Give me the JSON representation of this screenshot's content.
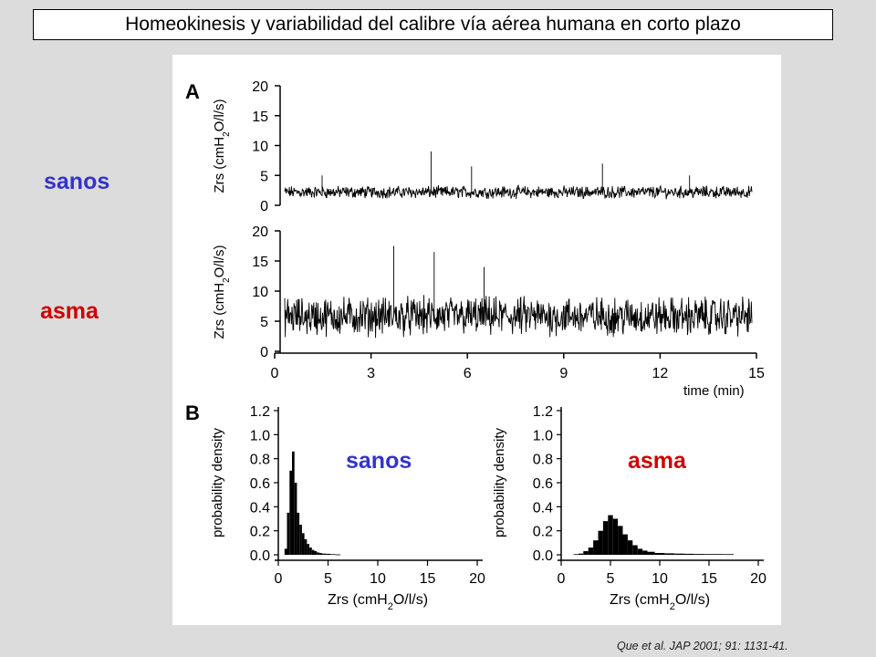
{
  "title": "Homeokinesis y variabilidad del calibre vía aérea humana en corto plazo",
  "labels": {
    "left_top": "sanos",
    "left_bottom": "asma",
    "hist_left": "sanos",
    "hist_right": "asma"
  },
  "citation": "Que et al. JAP 2001; 91: 1131-41.",
  "colors": {
    "blue": "#3333cc",
    "red": "#cc0000"
  },
  "chart_data": [
    {
      "panel": "A",
      "type": "line",
      "series": [
        {
          "name": "sanos"
        }
      ],
      "ylabel": "Zrs (cmH2O/l/s)",
      "ylim": [
        0,
        20
      ],
      "yticks": [
        "0",
        "5",
        "10",
        "15",
        "20"
      ],
      "xlim": [
        0,
        15
      ],
      "baseline_mean": 2.2,
      "spikes_min": [
        1.2,
        4.7,
        6.0,
        10.2,
        13.0
      ],
      "spike_values": [
        5,
        9,
        6.5,
        7,
        5
      ]
    },
    {
      "panel": "A",
      "type": "line",
      "series": [
        {
          "name": "asma"
        }
      ],
      "ylabel": "Zrs (cmH2O/l/s)",
      "ylim": [
        0,
        20
      ],
      "yticks": [
        "0",
        "5",
        "10",
        "15",
        "20"
      ],
      "xlim": [
        0,
        15
      ],
      "xticks": [
        "0",
        "3",
        "6",
        "9",
        "12",
        "15"
      ],
      "xlabel": "time (min)",
      "baseline_mean": 5.8,
      "spikes_min": [
        3.5,
        4.8,
        6.4
      ],
      "spike_values": [
        17.5,
        16.5,
        14
      ]
    },
    {
      "panel": "B",
      "type": "bar",
      "series": [
        {
          "name": "sanos"
        }
      ],
      "xlabel": "Zrs (cmH2O/l/s)",
      "ylabel": "probability density",
      "xlim": [
        0,
        20
      ],
      "ylim": [
        0,
        1.2
      ],
      "xticks": [
        "0",
        "5",
        "10",
        "15",
        "20"
      ],
      "yticks": [
        "0.0",
        "0.2",
        "0.4",
        "0.6",
        "0.8",
        "1.0",
        "1.2"
      ],
      "x": [
        0.75,
        1.0,
        1.25,
        1.5,
        1.75,
        2.0,
        2.25,
        2.5,
        2.75,
        3.0,
        3.25,
        3.5,
        3.75,
        4.0,
        4.25,
        4.5,
        5.0,
        5.5,
        6.0
      ],
      "values": [
        0.05,
        0.35,
        0.7,
        0.86,
        0.6,
        0.35,
        0.25,
        0.18,
        0.13,
        0.09,
        0.06,
        0.04,
        0.03,
        0.02,
        0.015,
        0.01,
        0.008,
        0.005,
        0.003
      ]
    },
    {
      "panel": "B",
      "type": "bar",
      "series": [
        {
          "name": "asma"
        }
      ],
      "xlabel": "Zrs (cmH2O/l/s)",
      "ylabel": "probability density",
      "xlim": [
        0,
        20
      ],
      "ylim": [
        0,
        1.2
      ],
      "xticks": [
        "0",
        "5",
        "10",
        "15",
        "20"
      ],
      "yticks": [
        "0.0",
        "0.2",
        "0.4",
        "0.6",
        "0.8",
        "1.0",
        "1.2"
      ],
      "x": [
        1.5,
        2.0,
        2.5,
        3.0,
        3.5,
        4.0,
        4.5,
        5.0,
        5.5,
        6.0,
        6.5,
        7.0,
        7.5,
        8.0,
        8.5,
        9.0,
        10.0,
        11.0,
        12.0,
        13.0,
        14.0,
        15.0,
        16.0,
        17.0
      ],
      "values": [
        0.005,
        0.01,
        0.03,
        0.06,
        0.12,
        0.2,
        0.28,
        0.33,
        0.3,
        0.24,
        0.17,
        0.12,
        0.08,
        0.05,
        0.035,
        0.025,
        0.015,
        0.012,
        0.01,
        0.008,
        0.007,
        0.006,
        0.006,
        0.005
      ]
    }
  ]
}
